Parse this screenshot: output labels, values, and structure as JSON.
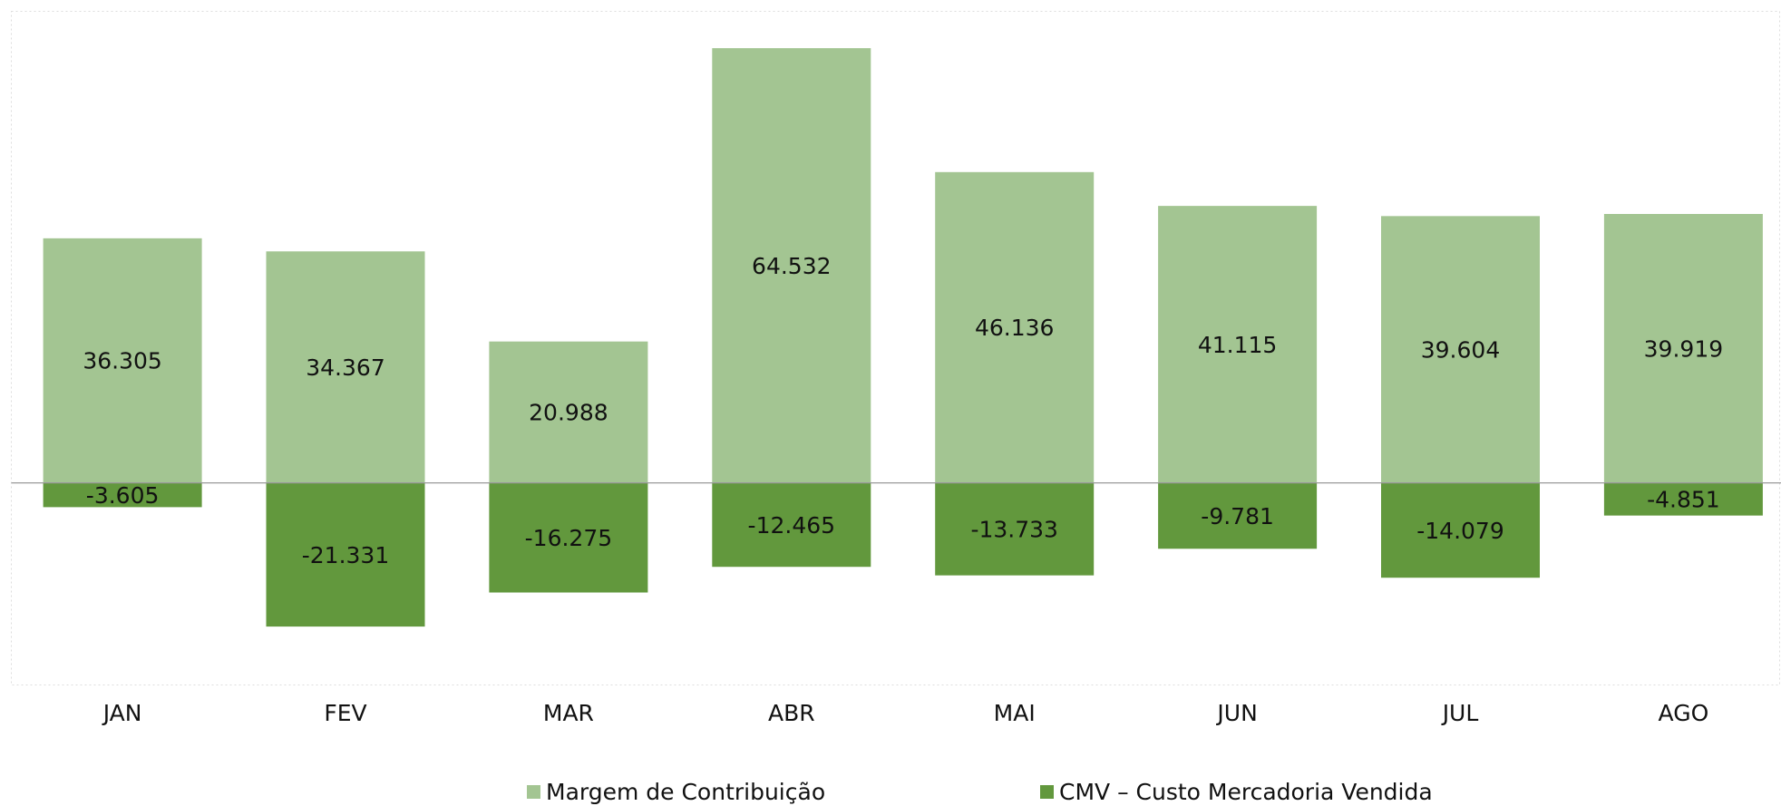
{
  "chart_data": {
    "type": "bar",
    "categories": [
      "JAN",
      "FEV",
      "MAR",
      "ABR",
      "MAI",
      "JUN",
      "JUL",
      "AGO"
    ],
    "series": [
      {
        "name": "Margem de Contribuição",
        "color": "#a3c592",
        "values": [
          36305,
          34367,
          20988,
          64532,
          46136,
          41115,
          39604,
          39919
        ],
        "value_labels": [
          "36.305",
          "34.367",
          "20.988",
          "64.532",
          "46.136",
          "41.115",
          "39.604",
          "39.919"
        ]
      },
      {
        "name": "CMV – Custo Mercadoria Vendida",
        "color": "#62983d",
        "values": [
          -3605,
          -21331,
          -16275,
          -12465,
          -13733,
          -9781,
          -14079,
          -4851
        ],
        "value_labels": [
          "-3.605",
          "-21.331",
          "-16.275",
          "-12.465",
          "-13.733",
          "-9.781",
          "-14.079",
          "-4.851"
        ]
      }
    ],
    "ylim": [
      -30000,
      70000
    ],
    "legend": "bottom"
  }
}
